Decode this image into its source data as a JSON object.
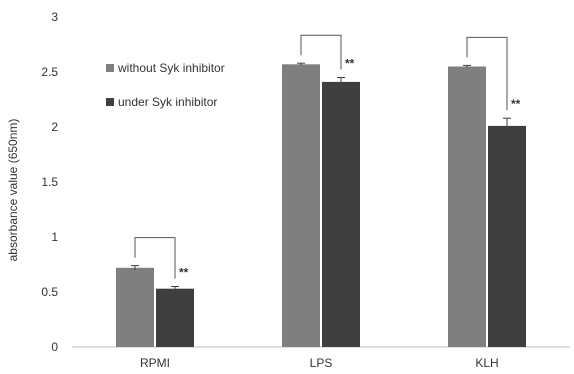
{
  "chart_data": {
    "type": "bar",
    "categories": [
      "RPMI",
      "LPS",
      "KLH"
    ],
    "ylabel": "absorbance value (650nm)",
    "xlabel": "",
    "ylim": [
      0,
      3
    ],
    "yticks": [
      "0",
      "0.5",
      "1",
      "1.5",
      "2",
      "2.5",
      "3"
    ],
    "legend_position": "top-left",
    "grid": false,
    "series": [
      {
        "name": "without Syk inhibitor",
        "color": "#7f7f7f",
        "values": [
          0.72,
          2.57,
          2.55
        ],
        "errors": [
          0.02,
          0.01,
          0.01
        ]
      },
      {
        "name": "under Syk inhibitor",
        "color": "#3f3f3f",
        "values": [
          0.53,
          2.41,
          2.01
        ],
        "errors": [
          0.02,
          0.04,
          0.07
        ]
      }
    ],
    "annotations": [
      "**",
      "**",
      "**"
    ]
  }
}
